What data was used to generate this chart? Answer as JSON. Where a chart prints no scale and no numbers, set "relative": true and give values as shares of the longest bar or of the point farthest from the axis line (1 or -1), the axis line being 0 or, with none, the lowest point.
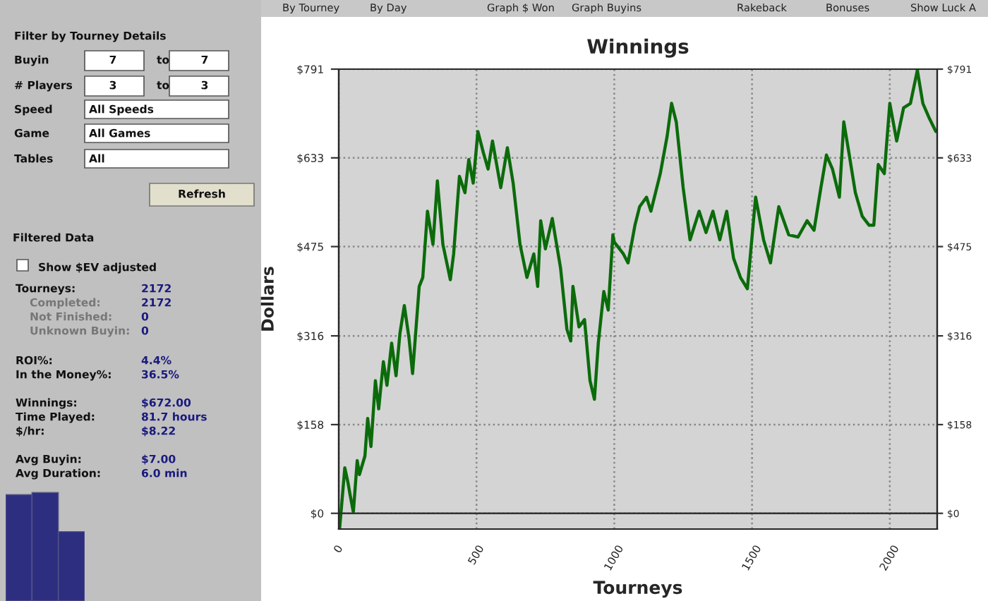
{
  "chart_data": [
    {
      "type": "other",
      "annotations": [
        "By Tourney",
        "By Day",
        "Graph $ Won",
        "Graph Buyins",
        "Rakeback",
        "Bonuses",
        "Show Luck A"
      ]
    },
    {
      "type": "other",
      "annotations": [
        "Filter by Tourney Details",
        "Buyin",
        "7",
        "to",
        "7",
        "# Players",
        "3",
        "to",
        "3",
        "Speed",
        "All Speeds",
        "Game",
        "All Games",
        "Tables",
        "All",
        "Refresh",
        "Filtered Data",
        "Show $EV adjusted",
        "Tourneys:",
        "2172",
        "Completed:",
        "2172",
        "Not Finished:",
        "0",
        "Unknown Buyin:",
        "0",
        "ROI%:",
        "4.4%",
        "In the Money%:",
        "36.5%",
        "Winnings:",
        "$672.00",
        "Time Played:",
        "81.7 hours",
        "$/hr:",
        "$8.22",
        "Avg Buyin:",
        "$7.00",
        "Avg Duration:",
        "6.0 min"
      ]
    },
    {
      "type": "line",
      "title": "Winnings",
      "xlabel": "Tourneys",
      "ylabel": "Dollars",
      "xlim": [
        0,
        2172
      ],
      "xticks": [
        0,
        500,
        1000,
        1500,
        2000
      ],
      "ylim": [
        -28,
        791
      ],
      "yticks": [
        {
          "value": 0,
          "label": "$0"
        },
        {
          "value": 158,
          "label": "$158"
        },
        {
          "value": 316,
          "label": "$316"
        },
        {
          "value": 475,
          "label": "$475"
        },
        {
          "value": 633,
          "label": "$633"
        },
        {
          "value": 791,
          "label": "$791"
        }
      ],
      "y2lim": [
        -28,
        791
      ],
      "y2ticks": [
        {
          "value": 0,
          "label": "$0"
        },
        {
          "value": 158,
          "label": "$158"
        },
        {
          "value": 316,
          "label": "$316"
        },
        {
          "value": 475,
          "label": "$475"
        },
        {
          "value": 633,
          "label": "$633"
        },
        {
          "value": 791,
          "label": "$791"
        }
      ],
      "grid": true,
      "line_style": "solid",
      "marker": "none",
      "series": [
        {
          "color": "#0b6b0b",
          "x": [
            3,
            22,
            33,
            42,
            53,
            67,
            75,
            95,
            105,
            117,
            133,
            145,
            162,
            175,
            192,
            208,
            222,
            238,
            255,
            268,
            292,
            305,
            322,
            342,
            358,
            378,
            405,
            417,
            438,
            458,
            472,
            488,
            505,
            525,
            542,
            558,
            588,
            612,
            633,
            658,
            683,
            708,
            722,
            733,
            750,
            775,
            805,
            828,
            842,
            850,
            872,
            892,
            912,
            928,
            942,
            962,
            978,
            995,
            1000,
            1033,
            1050,
            1075,
            1092,
            1117,
            1133,
            1167,
            1192,
            1208,
            1225,
            1250,
            1275,
            1308,
            1333,
            1358,
            1383,
            1408,
            1433,
            1458,
            1483,
            1513,
            1542,
            1567,
            1597,
            1633,
            1667,
            1700,
            1725,
            1750,
            1770,
            1792,
            1817,
            1833,
            1850,
            1875,
            1900,
            1925,
            1942,
            1958,
            1980,
            2000,
            2025,
            2050,
            2075,
            2100,
            2120,
            2142,
            2167
          ],
          "values": [
            -28,
            81,
            56,
            31,
            2,
            94,
            69,
            102,
            169,
            119,
            236,
            186,
            270,
            228,
            303,
            245,
            320,
            370,
            312,
            249,
            404,
            420,
            538,
            479,
            592,
            479,
            416,
            462,
            600,
            571,
            630,
            588,
            680,
            642,
            613,
            663,
            580,
            651,
            588,
            479,
            420,
            462,
            404,
            521,
            471,
            525,
            437,
            328,
            307,
            404,
            332,
            345,
            236,
            203,
            303,
            395,
            362,
            496,
            483,
            462,
            446,
            513,
            546,
            563,
            538,
            605,
            672,
            730,
            697,
            580,
            487,
            538,
            500,
            538,
            487,
            538,
            454,
            420,
            400,
            563,
            487,
            446,
            546,
            496,
            492,
            521,
            504,
            580,
            638,
            613,
            563,
            697,
            647,
            571,
            529,
            513,
            513,
            621,
            605,
            730,
            663,
            722,
            730,
            789,
            730,
            705,
            680
          ]
        }
      ]
    },
    {
      "type": "bar",
      "relative": true,
      "categories": [
        null,
        null,
        null
      ],
      "values": [
        0.98,
        1,
        0.64
      ],
      "color": "#2e2e80"
    }
  ]
}
